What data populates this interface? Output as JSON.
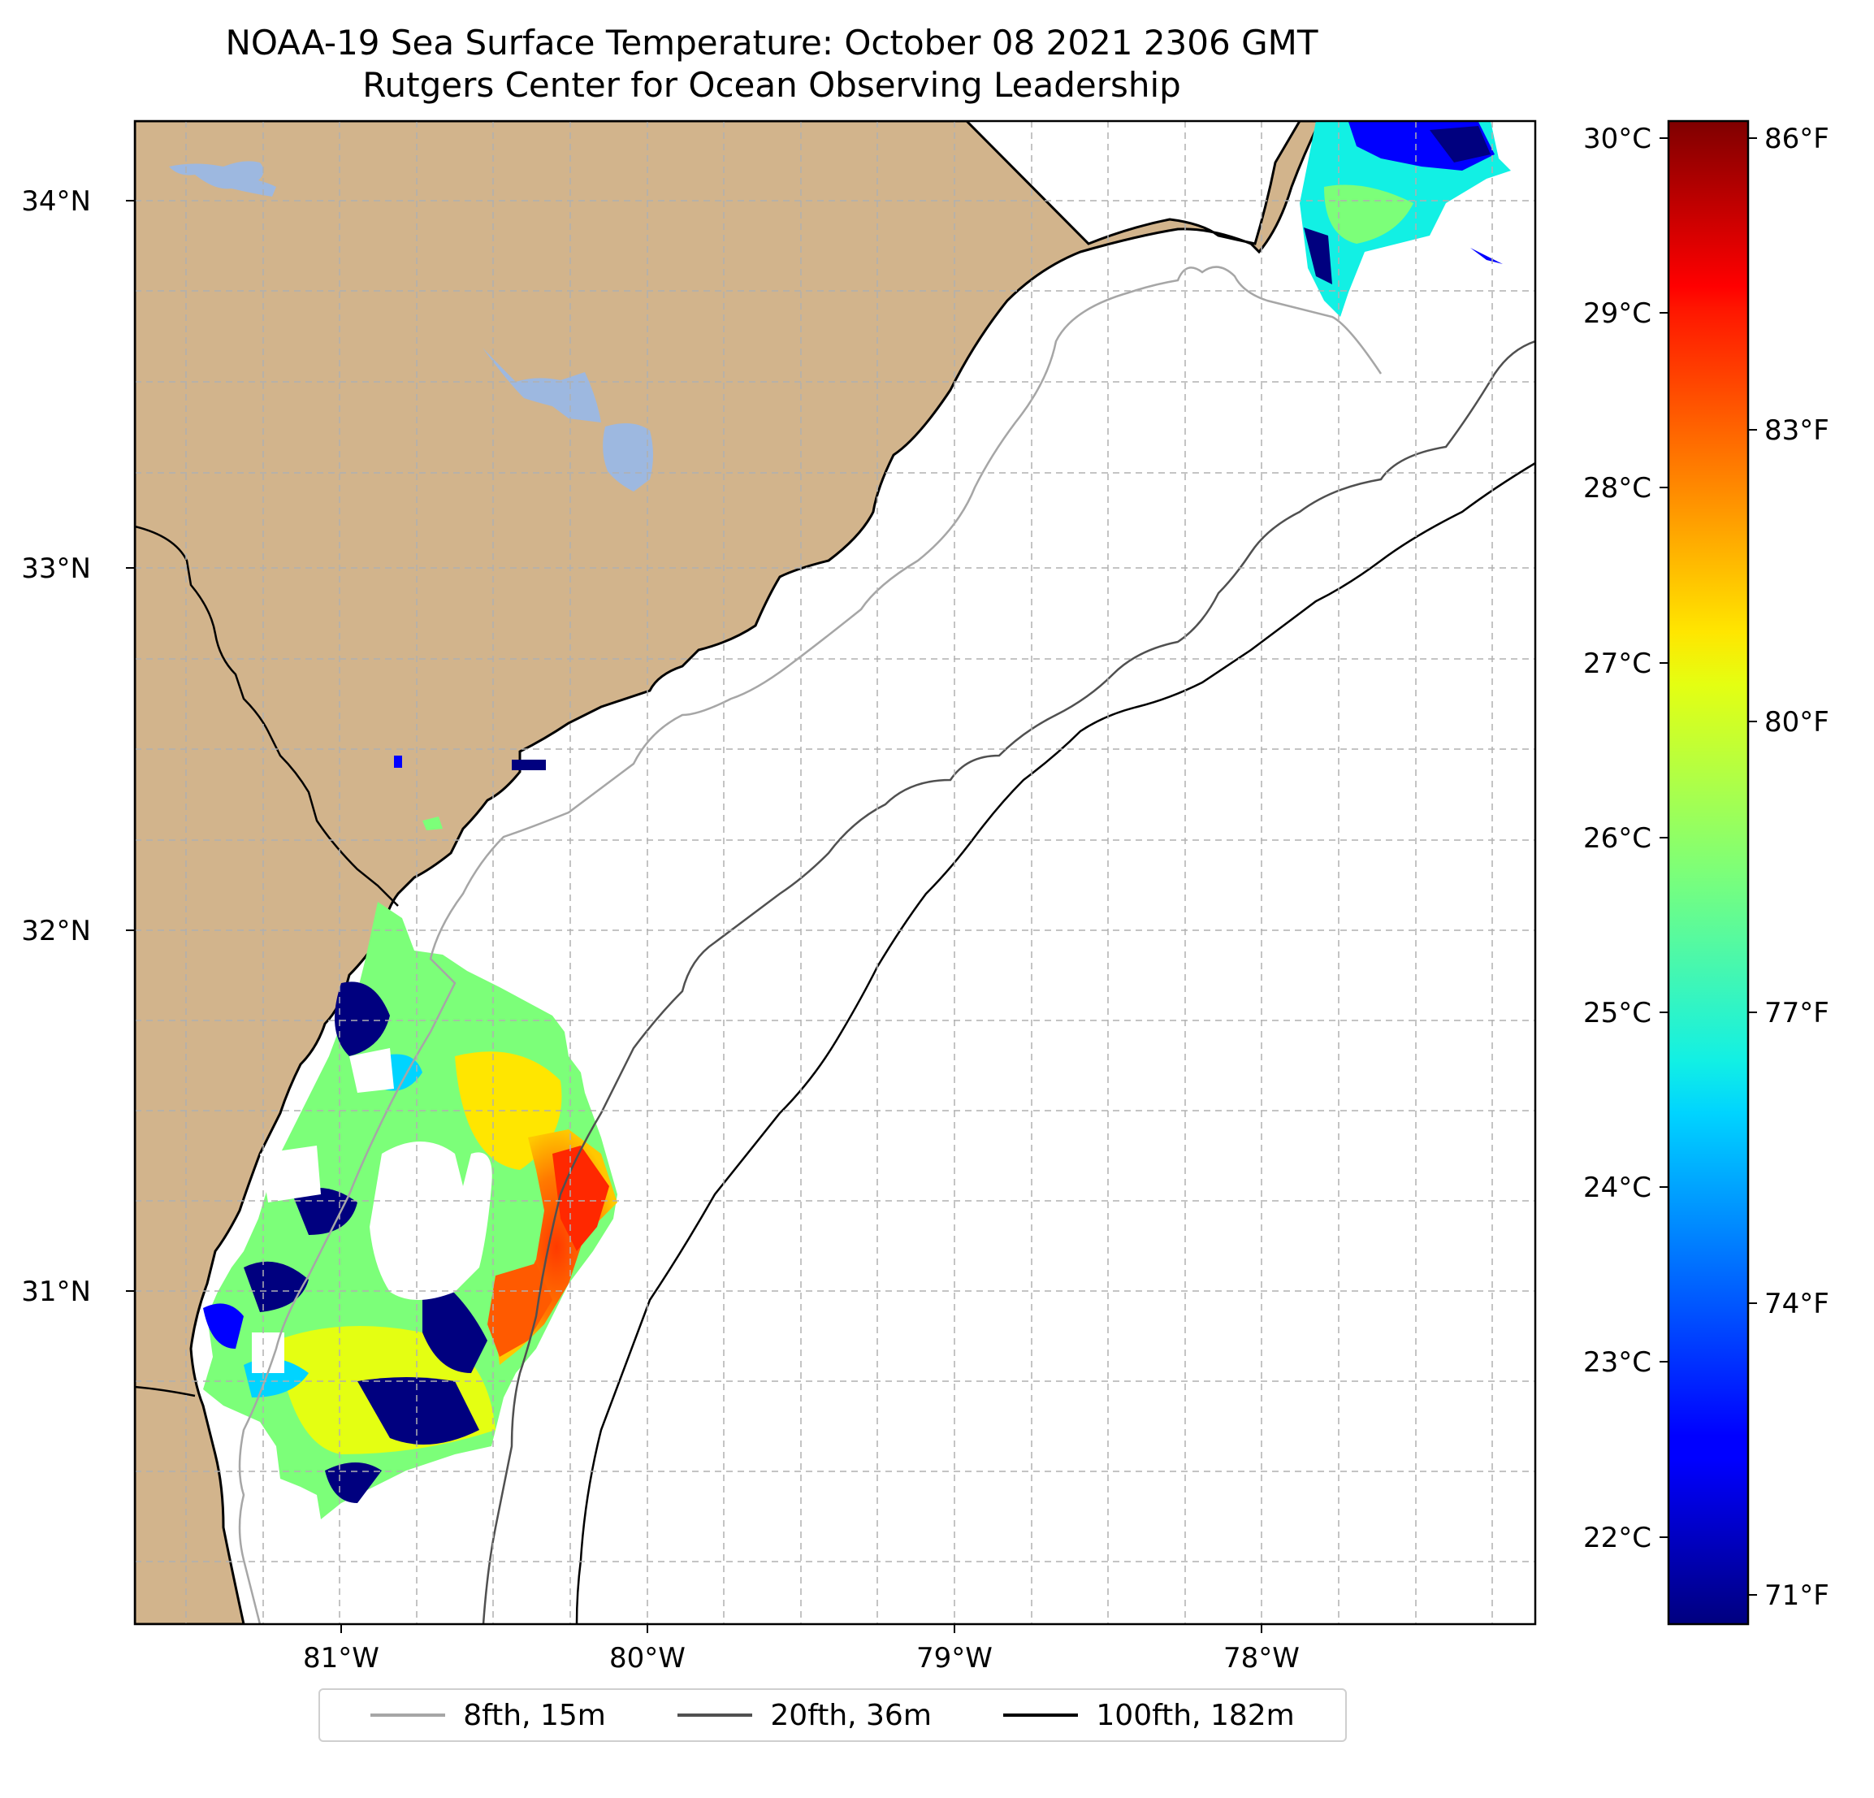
{
  "title": {
    "line1": "NOAA-19 Sea Surface Temperature: October 08 2021 2306 GMT",
    "line2": "Rutgers Center for Ocean Observing Leadership"
  },
  "map": {
    "lat_labels": [
      "34°N",
      "33°N",
      "32°N",
      "31°N"
    ],
    "lon_labels": [
      "81°W",
      "80°W",
      "79°W",
      "78°W"
    ],
    "land_color": "#d2b48c",
    "lake_color": "#9db8e0",
    "coastline_color": "#000000",
    "gridlines": "dashed"
  },
  "colorbar": {
    "celsius_labels": [
      "30°C",
      "29°C",
      "28°C",
      "27°C",
      "26°C",
      "25°C",
      "24°C",
      "23°C",
      "22°C"
    ],
    "fahrenheit_labels": [
      "86°F",
      "83°F",
      "80°F",
      "77°F",
      "74°F",
      "71°F"
    ],
    "colormap": "jet",
    "celsius_range": [
      21.6,
      30.1
    ]
  },
  "legend": {
    "items": [
      {
        "label": "8fth, 15m",
        "color": "#a6a6a6"
      },
      {
        "label": "20fth, 36m",
        "color": "#505050"
      },
      {
        "label": "100fth, 182m",
        "color": "#000000"
      }
    ]
  }
}
